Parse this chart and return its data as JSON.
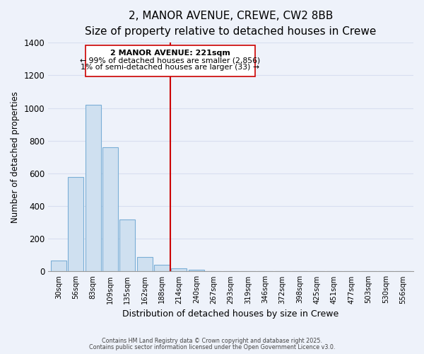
{
  "title": "2, MANOR AVENUE, CREWE, CW2 8BB",
  "subtitle": "Size of property relative to detached houses in Crewe",
  "xlabel": "Distribution of detached houses by size in Crewe",
  "ylabel": "Number of detached properties",
  "bar_labels": [
    "30sqm",
    "56sqm",
    "83sqm",
    "109sqm",
    "135sqm",
    "162sqm",
    "188sqm",
    "214sqm",
    "240sqm",
    "267sqm",
    "293sqm",
    "319sqm",
    "346sqm",
    "372sqm",
    "398sqm",
    "425sqm",
    "451sqm",
    "477sqm",
    "503sqm",
    "530sqm",
    "556sqm"
  ],
  "bar_heights": [
    67,
    580,
    1022,
    762,
    320,
    90,
    40,
    20,
    10,
    0,
    0,
    0,
    0,
    0,
    0,
    0,
    0,
    0,
    0,
    0,
    0
  ],
  "bar_color": "#cfe0f0",
  "bar_edge_color": "#7aaed6",
  "vline_color": "#cc0000",
  "ylim": [
    0,
    1400
  ],
  "yticks": [
    0,
    200,
    400,
    600,
    800,
    1000,
    1200,
    1400
  ],
  "annotation_title": "2 MANOR AVENUE: 221sqm",
  "annotation_line1": "← 99% of detached houses are smaller (2,856)",
  "annotation_line2": "1% of semi-detached houses are larger (33) →",
  "footer1": "Contains HM Land Registry data © Crown copyright and database right 2025.",
  "footer2": "Contains public sector information licensed under the Open Government Licence v3.0.",
  "background_color": "#eef2fa",
  "grid_color": "#d8dff0",
  "title_fontsize": 11,
  "subtitle_fontsize": 9.5
}
